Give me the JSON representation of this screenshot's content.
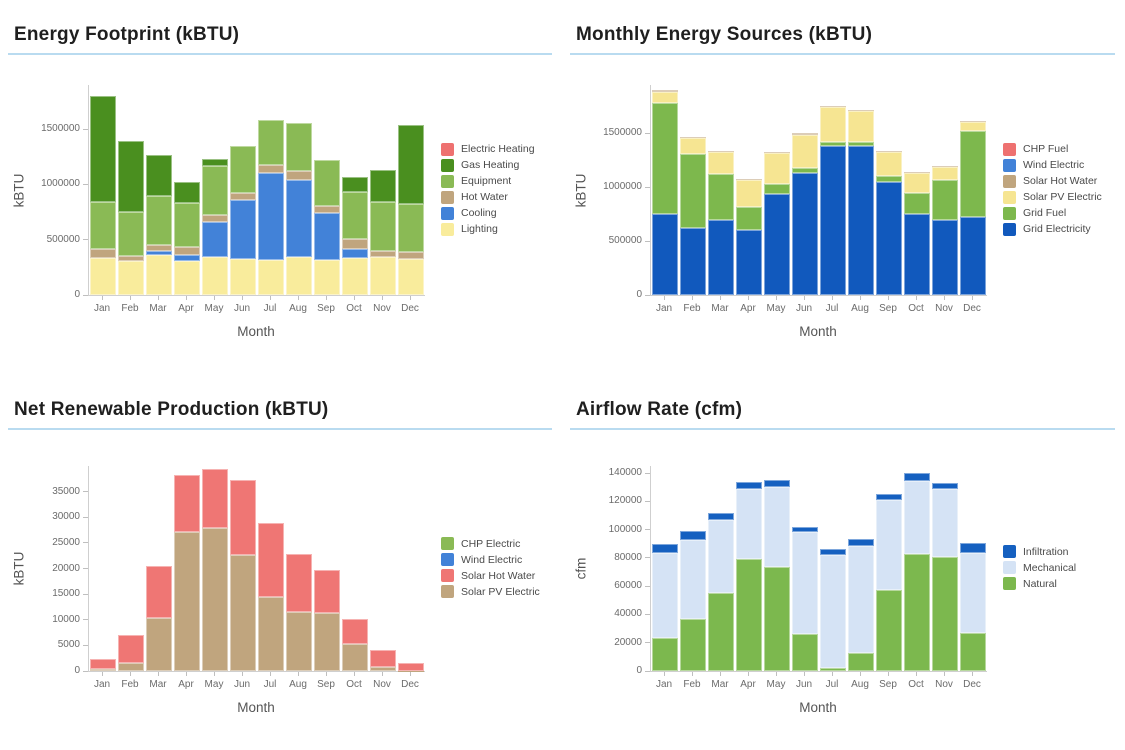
{
  "months": [
    "Jan",
    "Feb",
    "Mar",
    "Apr",
    "May",
    "Jun",
    "Jul",
    "Aug",
    "Sep",
    "Oct",
    "Nov",
    "Dec"
  ],
  "chart_data": [
    {
      "type": "bar",
      "stacked": true,
      "title": "Energy Footprint (kBTU)",
      "xlabel": "Month",
      "ylabel": "kBTU",
      "ylim": [
        0,
        1900000
      ],
      "yticks": [
        0,
        500000,
        1000000,
        1500000
      ],
      "categories": [
        "Jan",
        "Feb",
        "Mar",
        "Apr",
        "May",
        "Jun",
        "Jul",
        "Aug",
        "Sep",
        "Oct",
        "Nov",
        "Dec"
      ],
      "legend_order": [
        "Electric Heating",
        "Gas Heating",
        "Equipment",
        "Hot Water",
        "Cooling",
        "Lighting"
      ],
      "series": [
        {
          "name": "Lighting",
          "color": "#f9ec9c",
          "values": [
            335000,
            310000,
            365000,
            310000,
            340000,
            330000,
            320000,
            345000,
            320000,
            335000,
            340000,
            330000
          ]
        },
        {
          "name": "Cooling",
          "color": "#4282d8",
          "values": [
            0,
            0,
            30000,
            55000,
            325000,
            530000,
            785000,
            700000,
            420000,
            85000,
            0,
            0
          ]
        },
        {
          "name": "Hot Water",
          "color": "#c0a57e",
          "values": [
            80000,
            45000,
            60000,
            70000,
            55000,
            60000,
            70000,
            75000,
            65000,
            85000,
            60000,
            60000
          ]
        },
        {
          "name": "Equipment",
          "color": "#8aba55",
          "values": [
            430000,
            400000,
            440000,
            400000,
            450000,
            430000,
            410000,
            435000,
            420000,
            425000,
            440000,
            430000
          ]
        },
        {
          "name": "Gas Heating",
          "color": "#4a8f1f",
          "values": [
            960000,
            635000,
            375000,
            185000,
            60000,
            0,
            0,
            0,
            0,
            135000,
            295000,
            715000
          ]
        },
        {
          "name": "Electric Heating",
          "color": "#ee7170",
          "values": [
            0,
            0,
            0,
            0,
            0,
            0,
            0,
            0,
            0,
            0,
            0,
            0
          ]
        }
      ]
    },
    {
      "type": "bar",
      "stacked": true,
      "title": "Monthly Energy Sources (kBTU)",
      "xlabel": "Month",
      "ylabel": "kBTU",
      "ylim": [
        0,
        1950000
      ],
      "yticks": [
        0,
        500000,
        1000000,
        1500000
      ],
      "categories": [
        "Jan",
        "Feb",
        "Mar",
        "Apr",
        "May",
        "Jun",
        "Jul",
        "Aug",
        "Sep",
        "Oct",
        "Nov",
        "Dec"
      ],
      "legend_order": [
        "CHP Fuel",
        "Wind Electric",
        "Solar Hot Water",
        "Solar PV Electric",
        "Grid Fuel",
        "Grid Electricity"
      ],
      "series": [
        {
          "name": "Grid Electricity",
          "color": "#1159bd",
          "values": [
            750000,
            620000,
            695000,
            600000,
            940000,
            1135000,
            1380000,
            1380000,
            1050000,
            750000,
            695000,
            725000
          ]
        },
        {
          "name": "Grid Fuel",
          "color": "#7db84d",
          "values": [
            1035000,
            685000,
            430000,
            215000,
            90000,
            40000,
            40000,
            40000,
            55000,
            195000,
            370000,
            795000
          ]
        },
        {
          "name": "Solar PV Electric",
          "color": "#f6e592",
          "values": [
            100000,
            150000,
            200000,
            250000,
            290000,
            315000,
            325000,
            290000,
            220000,
            190000,
            120000,
            90000
          ]
        },
        {
          "name": "Solar Hot Water",
          "color": "#c0a57e",
          "values": [
            15000,
            12000,
            12000,
            12000,
            12000,
            12000,
            12000,
            12000,
            12000,
            10000,
            10000,
            10000
          ]
        },
        {
          "name": "Wind Electric",
          "color": "#4282d8",
          "values": [
            0,
            0,
            0,
            0,
            0,
            0,
            0,
            0,
            0,
            0,
            0,
            0
          ]
        },
        {
          "name": "CHP Fuel",
          "color": "#ee7170",
          "values": [
            0,
            0,
            0,
            0,
            0,
            0,
            0,
            0,
            0,
            0,
            0,
            0
          ]
        }
      ]
    },
    {
      "type": "bar",
      "stacked": true,
      "title": "Net Renewable Production (kBTU)",
      "xlabel": "Month",
      "ylabel": "kBTU",
      "ylim": [
        0,
        40000
      ],
      "yticks": [
        0,
        5000,
        10000,
        15000,
        20000,
        25000,
        30000,
        35000
      ],
      "categories": [
        "Jan",
        "Feb",
        "Mar",
        "Apr",
        "May",
        "Jun",
        "Jul",
        "Aug",
        "Sep",
        "Oct",
        "Nov",
        "Dec"
      ],
      "legend_order": [
        "CHP Electric",
        "Wind Electric",
        "Solar Hot Water",
        "Solar PV Electric"
      ],
      "series": [
        {
          "name": "Solar PV Electric",
          "color": "#c0a57e",
          "values": [
            300,
            1500,
            10400,
            27200,
            27900,
            22600,
            14450,
            11500,
            11300,
            5200,
            800,
            100
          ]
        },
        {
          "name": "Solar Hot Water",
          "color": "#ef7674",
          "values": [
            2000,
            5450,
            10150,
            11000,
            11500,
            14650,
            14500,
            11300,
            8350,
            5000,
            3300,
            1400
          ]
        },
        {
          "name": "Wind Electric",
          "color": "#4282d8",
          "values": [
            0,
            0,
            0,
            0,
            0,
            0,
            0,
            0,
            0,
            0,
            0,
            0
          ]
        },
        {
          "name": "CHP Electric",
          "color": "#8aba55",
          "values": [
            0,
            0,
            0,
            0,
            0,
            0,
            0,
            0,
            0,
            0,
            0,
            0
          ]
        }
      ]
    },
    {
      "type": "bar",
      "stacked": true,
      "title": "Airflow Rate (cfm)",
      "xlabel": "Month",
      "ylabel": "cfm",
      "ylim": [
        0,
        145000
      ],
      "yticks": [
        0,
        20000,
        40000,
        60000,
        80000,
        100000,
        120000,
        140000
      ],
      "categories": [
        "Jan",
        "Feb",
        "Mar",
        "Apr",
        "May",
        "Jun",
        "Jul",
        "Aug",
        "Sep",
        "Oct",
        "Nov",
        "Dec"
      ],
      "legend_order": [
        "Infiltration",
        "Mechanical",
        "Natural"
      ],
      "series": [
        {
          "name": "Natural",
          "color": "#7cb84e",
          "values": [
            23000,
            37000,
            55500,
            79000,
            73500,
            26000,
            2000,
            12500,
            57000,
            83000,
            80500,
            27000
          ]
        },
        {
          "name": "Mechanical",
          "color": "#d5e3f5",
          "values": [
            60500,
            55500,
            51000,
            49500,
            56500,
            72000,
            80000,
            76000,
            64000,
            51500,
            48000,
            56500
          ]
        },
        {
          "name": "Infiltration",
          "color": "#1560c0",
          "values": [
            6500,
            6500,
            5500,
            5000,
            5000,
            4000,
            4000,
            5000,
            4500,
            5500,
            4500,
            7000
          ]
        }
      ]
    }
  ],
  "style": {
    "underline_color": "#b9dbf0",
    "title_color": "#1f1f1f",
    "axis_text_color": "#6b6b6b"
  }
}
